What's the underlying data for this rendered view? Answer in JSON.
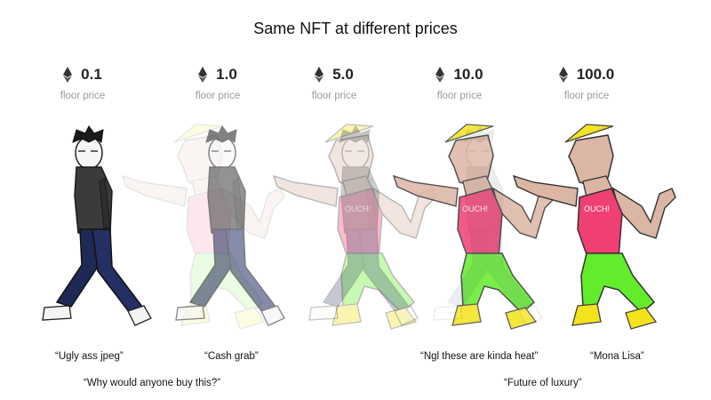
{
  "title": "Same NFT at different prices",
  "prices": [
    {
      "value": "0.1",
      "label": "floor price"
    },
    {
      "value": "1.0",
      "label": "floor price"
    },
    {
      "value": "5.0",
      "label": "floor price"
    },
    {
      "value": "10.0",
      "label": "floor price"
    },
    {
      "value": "100.0",
      "label": "floor price"
    }
  ],
  "shirt_text": "OUCH!",
  "captions": [
    "“Ugly ass jpeg”",
    "“Cash grab”",
    "“Ngl these are kinda heat”",
    "“Mona Lisa”",
    "“Why would anyone buy this?”",
    "“Future of luxury”"
  ],
  "colors": {
    "jacket": "#3a3a3a",
    "jeans": "#1f2a55",
    "shirt": "#ef5a8a",
    "pants": "#66ee33",
    "shoes": "#f3e31a",
    "hat": "#f2e520",
    "skin": "#dcb6a4"
  }
}
